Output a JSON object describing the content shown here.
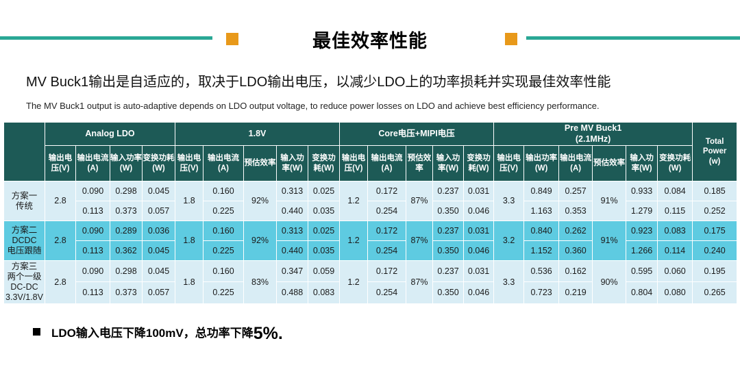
{
  "slide": {
    "title": "最佳效率性能",
    "subtitle_cn": "MV Buck1输出是自适应的，取决于LDO输出电压，以减少LDO上的功率损耗并实现最佳效率性能",
    "subtitle_en": "The MV Buck1 output is auto-adaptive depends on LDO output voltage, to reduce power losses on LDO and achieve best efficiency performance.",
    "footnote": {
      "text": "LDO输入电压下降100mV，总功率下降",
      "emphasis": "5%."
    }
  },
  "colors": {
    "accent_teal": "#2aa795",
    "accent_orange": "#e8991a",
    "header_teal": "#1d5a56",
    "light_row": "#d9edf5",
    "highlight_row": "#5ecbe1",
    "alert_red": "#ff0000"
  },
  "table": {
    "groups": [
      {
        "label": "Analog LDO",
        "span": 4
      },
      {
        "label": "1.8V",
        "span": 5
      },
      {
        "label": "Core电压+MIPI电压",
        "span": 5
      },
      {
        "label": "Pre MV Buck1\n(2.1MHz)",
        "span": 6
      }
    ],
    "total_header": "Total\nPower\n(w)",
    "sub_headers": [
      "输出电压(V)",
      "输出电流(A)",
      "输入功率(W)",
      "变换功耗(W)",
      "输出电压(V)",
      "输出电流(A)",
      "预估效率",
      "输入功率(W)",
      "变换功耗(W)",
      "输出电压(V)",
      "输出电流(A)",
      "预估效率",
      "输入功率(W)",
      "变换功耗(W)",
      "输出电压(V)",
      "输出功率(W)",
      "输出电流(A)",
      "预估效率",
      "输入功率(W)",
      "变换功耗(W)"
    ],
    "col_merge_pattern": [
      "merged",
      "split",
      "split",
      "split",
      "merged",
      "split",
      "merged",
      "split",
      "split",
      "merged",
      "split",
      "merged",
      "split",
      "split",
      "merged",
      "split",
      "split",
      "merged",
      "split",
      "split",
      "split"
    ],
    "rows": [
      {
        "label": "方案一\n传统",
        "label_red": false,
        "highlight": false,
        "merged": [
          "2.8",
          "1.8",
          "92%",
          "1.2",
          "87%",
          {
            "v": "3.3",
            "red": true
          },
          "91%"
        ],
        "sub1": [
          "0.090",
          "0.298",
          "0.045",
          "0.160",
          "0.313",
          "0.025",
          "0.172",
          "0.237",
          "0.031",
          "0.849",
          "0.257",
          "0.933",
          "0.084",
          "0.185"
        ],
        "sub2": [
          "0.113",
          "0.373",
          "0.057",
          "0.225",
          "0.440",
          "0.035",
          "0.254",
          "0.350",
          "0.046",
          "1.163",
          "0.353",
          "1.279",
          "0.115",
          "0.252"
        ]
      },
      {
        "label": "方案二\nDCDC\n电压跟随",
        "label_red": true,
        "highlight": true,
        "merged": [
          "2.8",
          "1.8",
          "92%",
          "1.2",
          "87%",
          {
            "v": "3.2",
            "red": true
          },
          "91%"
        ],
        "sub1": [
          "0.090",
          "0.289",
          "0.036",
          "0.160",
          "0.313",
          "0.025",
          "0.172",
          "0.237",
          "0.031",
          "0.840",
          "0.262",
          "0.923",
          "0.083",
          {
            "v": "0.175",
            "red": true
          }
        ],
        "sub2": [
          "0.113",
          "0.362",
          "0.045",
          "0.225",
          "0.440",
          "0.035",
          "0.254",
          "0.350",
          "0.046",
          "1.152",
          "0.360",
          "1.266",
          "0.114",
          {
            "v": "0.240",
            "red": true
          }
        ]
      },
      {
        "label": "方案三\n两个一级\nDC-DC\n3.3V/1.8V",
        "label_red": false,
        "highlight": false,
        "merged": [
          "2.8",
          "1.8",
          "83%",
          "1.2",
          "87%",
          {
            "v": "3.3",
            "red": true
          },
          "90%"
        ],
        "sub1": [
          "0.090",
          "0.298",
          "0.045",
          "0.160",
          "0.347",
          "0.059",
          "0.172",
          "0.237",
          "0.031",
          "0.536",
          "0.162",
          "0.595",
          "0.060",
          "0.195"
        ],
        "sub2": [
          "0.113",
          "0.373",
          "0.057",
          "0.225",
          "0.488",
          "0.083",
          "0.254",
          "0.350",
          "0.046",
          "0.723",
          "0.219",
          "0.804",
          "0.080",
          "0.265"
        ]
      }
    ]
  }
}
